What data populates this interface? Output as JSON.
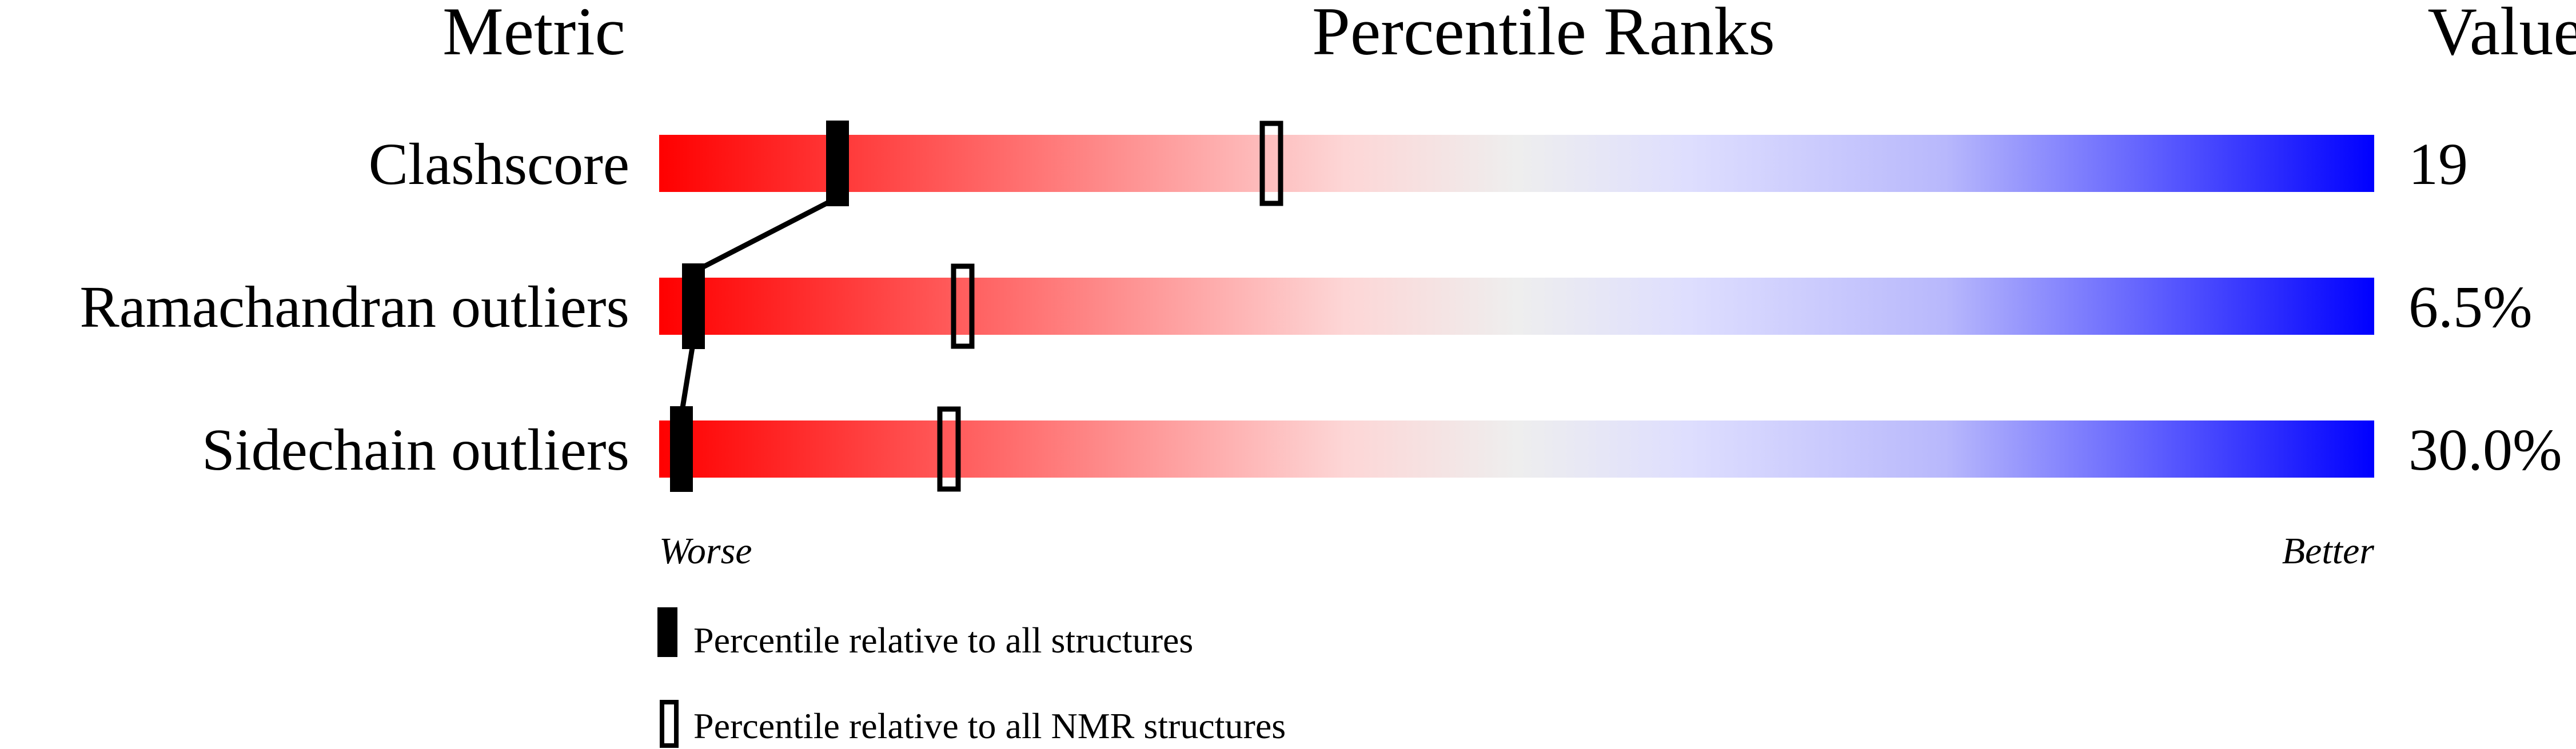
{
  "chart_data": {
    "type": "percentile-bar",
    "headers": {
      "metric": "Metric",
      "ranks": "Percentile Ranks",
      "value": "Value"
    },
    "axis": {
      "left": "Worse",
      "right": "Better",
      "range": [
        0,
        100
      ]
    },
    "gradient": {
      "worse_color": "#ff0000",
      "mid_color": "#eeeeee",
      "better_color": "#0000ff"
    },
    "metrics": [
      {
        "name": "Clashscore",
        "value": "19",
        "percentile_all": 10.4,
        "percentile_nmr": 35.7
      },
      {
        "name": "Ramachandran outliers",
        "value": "6.5%",
        "percentile_all": 2.0,
        "percentile_nmr": 17.7
      },
      {
        "name": "Sidechain outliers",
        "value": "30.0%",
        "percentile_all": 1.3,
        "percentile_nmr": 16.9
      }
    ],
    "legend": [
      {
        "marker": "filled",
        "label": "Percentile relative to all structures"
      },
      {
        "marker": "hollow",
        "label": "Percentile relative to all NMR structures"
      }
    ]
  }
}
